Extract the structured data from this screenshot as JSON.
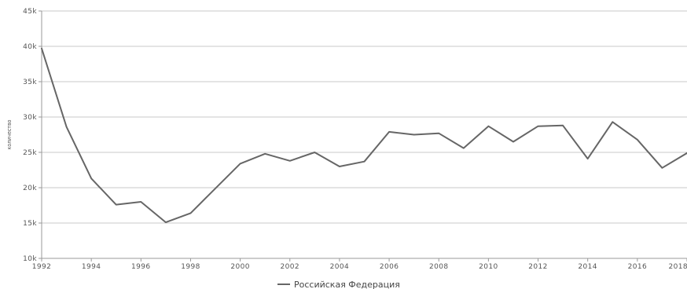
{
  "chart_data": {
    "type": "line",
    "ylabel": "количество",
    "xlabel": "",
    "ylim": [
      10000,
      45000
    ],
    "xlim": [
      1992,
      2018
    ],
    "y_ticks": [
      10000,
      15000,
      20000,
      25000,
      30000,
      35000,
      40000,
      45000
    ],
    "y_tick_labels": [
      "10k",
      "15k",
      "20k",
      "25k",
      "30k",
      "35k",
      "40k",
      "45k"
    ],
    "x_ticks": [
      1992,
      1994,
      1996,
      1998,
      2000,
      2002,
      2004,
      2006,
      2008,
      2010,
      2012,
      2014,
      2016,
      2018
    ],
    "x_tick_labels": [
      "1992",
      "1994",
      "1996",
      "1998",
      "2000",
      "2002",
      "2004",
      "2006",
      "2008",
      "2010",
      "2012",
      "2014",
      "2016",
      "2018"
    ],
    "grid": "horizontal",
    "legend_position": "bottom-center",
    "colors": {
      "line": "#666666",
      "grid": "#c8c8c8",
      "axis": "#999999"
    },
    "x": [
      1992,
      1993,
      1994,
      1995,
      1996,
      1997,
      1998,
      1999,
      2000,
      2001,
      2002,
      2003,
      2004,
      2005,
      2006,
      2007,
      2008,
      2009,
      2010,
      2011,
      2012,
      2013,
      2014,
      2015,
      2016,
      2017,
      2018
    ],
    "series": [
      {
        "name": "Российская Федерация",
        "values": [
          39700,
          28600,
          21300,
          17600,
          18000,
          15100,
          16400,
          19900,
          23400,
          24800,
          23800,
          25000,
          23000,
          23700,
          27900,
          27500,
          27700,
          25600,
          28700,
          26500,
          28700,
          28800,
          24100,
          29300,
          26800,
          22800,
          24900
        ]
      }
    ]
  }
}
